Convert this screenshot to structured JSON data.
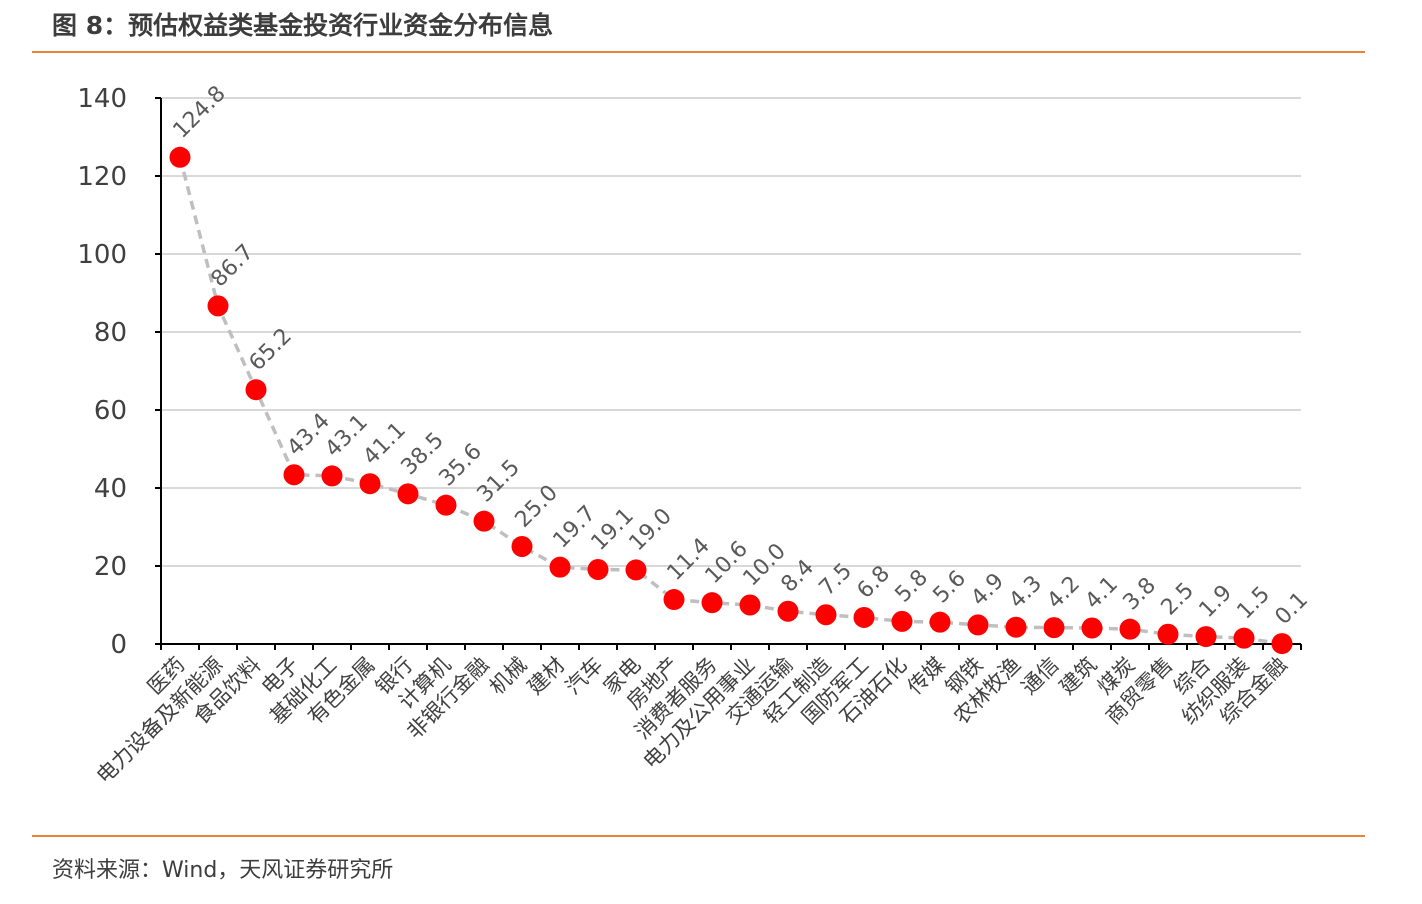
{
  "figure": {
    "title": "图 8：预估权益类基金投资行业资金分布信息",
    "source": "资料来源：Wind，天风证券研究所"
  },
  "colors": {
    "rule": "#e8843a",
    "marker": "#ff0000",
    "line": "#bfbfbf",
    "grid": "#d9d9d9",
    "axis": "#000000",
    "text": "#404040",
    "label": "#595959"
  },
  "chart_data": {
    "type": "line",
    "title": "",
    "xlabel": "",
    "ylabel": "",
    "ylim": [
      0,
      140
    ],
    "yticks": [
      0,
      20,
      40,
      60,
      80,
      100,
      120,
      140
    ],
    "grid": true,
    "legend": "none",
    "line_style": "dashed",
    "categories": [
      "医药",
      "电力设备及新能源",
      "食品饮料",
      "电子",
      "基础化工",
      "有色金属",
      "银行",
      "计算机",
      "非银行金融",
      "机械",
      "建材",
      "汽车",
      "家电",
      "房地产",
      "消费者服务",
      "电力及公用事业",
      "交通运输",
      "轻工制造",
      "国防军工",
      "石油石化",
      "传媒",
      "钢铁",
      "农林牧渔",
      "通信",
      "建筑",
      "煤炭",
      "商贸零售",
      "综合",
      "纺织服装",
      "综合金融"
    ],
    "values": [
      124.8,
      86.7,
      65.2,
      43.4,
      43.1,
      41.1,
      38.5,
      35.6,
      31.5,
      25.0,
      19.7,
      19.1,
      19.0,
      11.4,
      10.6,
      10.0,
      8.4,
      7.5,
      6.8,
      5.8,
      5.6,
      4.9,
      4.3,
      4.2,
      4.1,
      3.8,
      2.5,
      1.9,
      1.5,
      0.1
    ],
    "data_labels": [
      "124.8",
      "86.7",
      "65.2",
      "43.4",
      "43.1",
      "41.1",
      "38.5",
      "35.6",
      "31.5",
      "25.0",
      "19.7",
      "19.1",
      "19.0",
      "11.4",
      "10.6",
      "10.0",
      "8.4",
      "7.5",
      "6.8",
      "5.8",
      "5.6",
      "4.9",
      "4.3",
      "4.2",
      "4.1",
      "3.8",
      "2.5",
      "1.9",
      "1.5",
      "0.1"
    ]
  }
}
